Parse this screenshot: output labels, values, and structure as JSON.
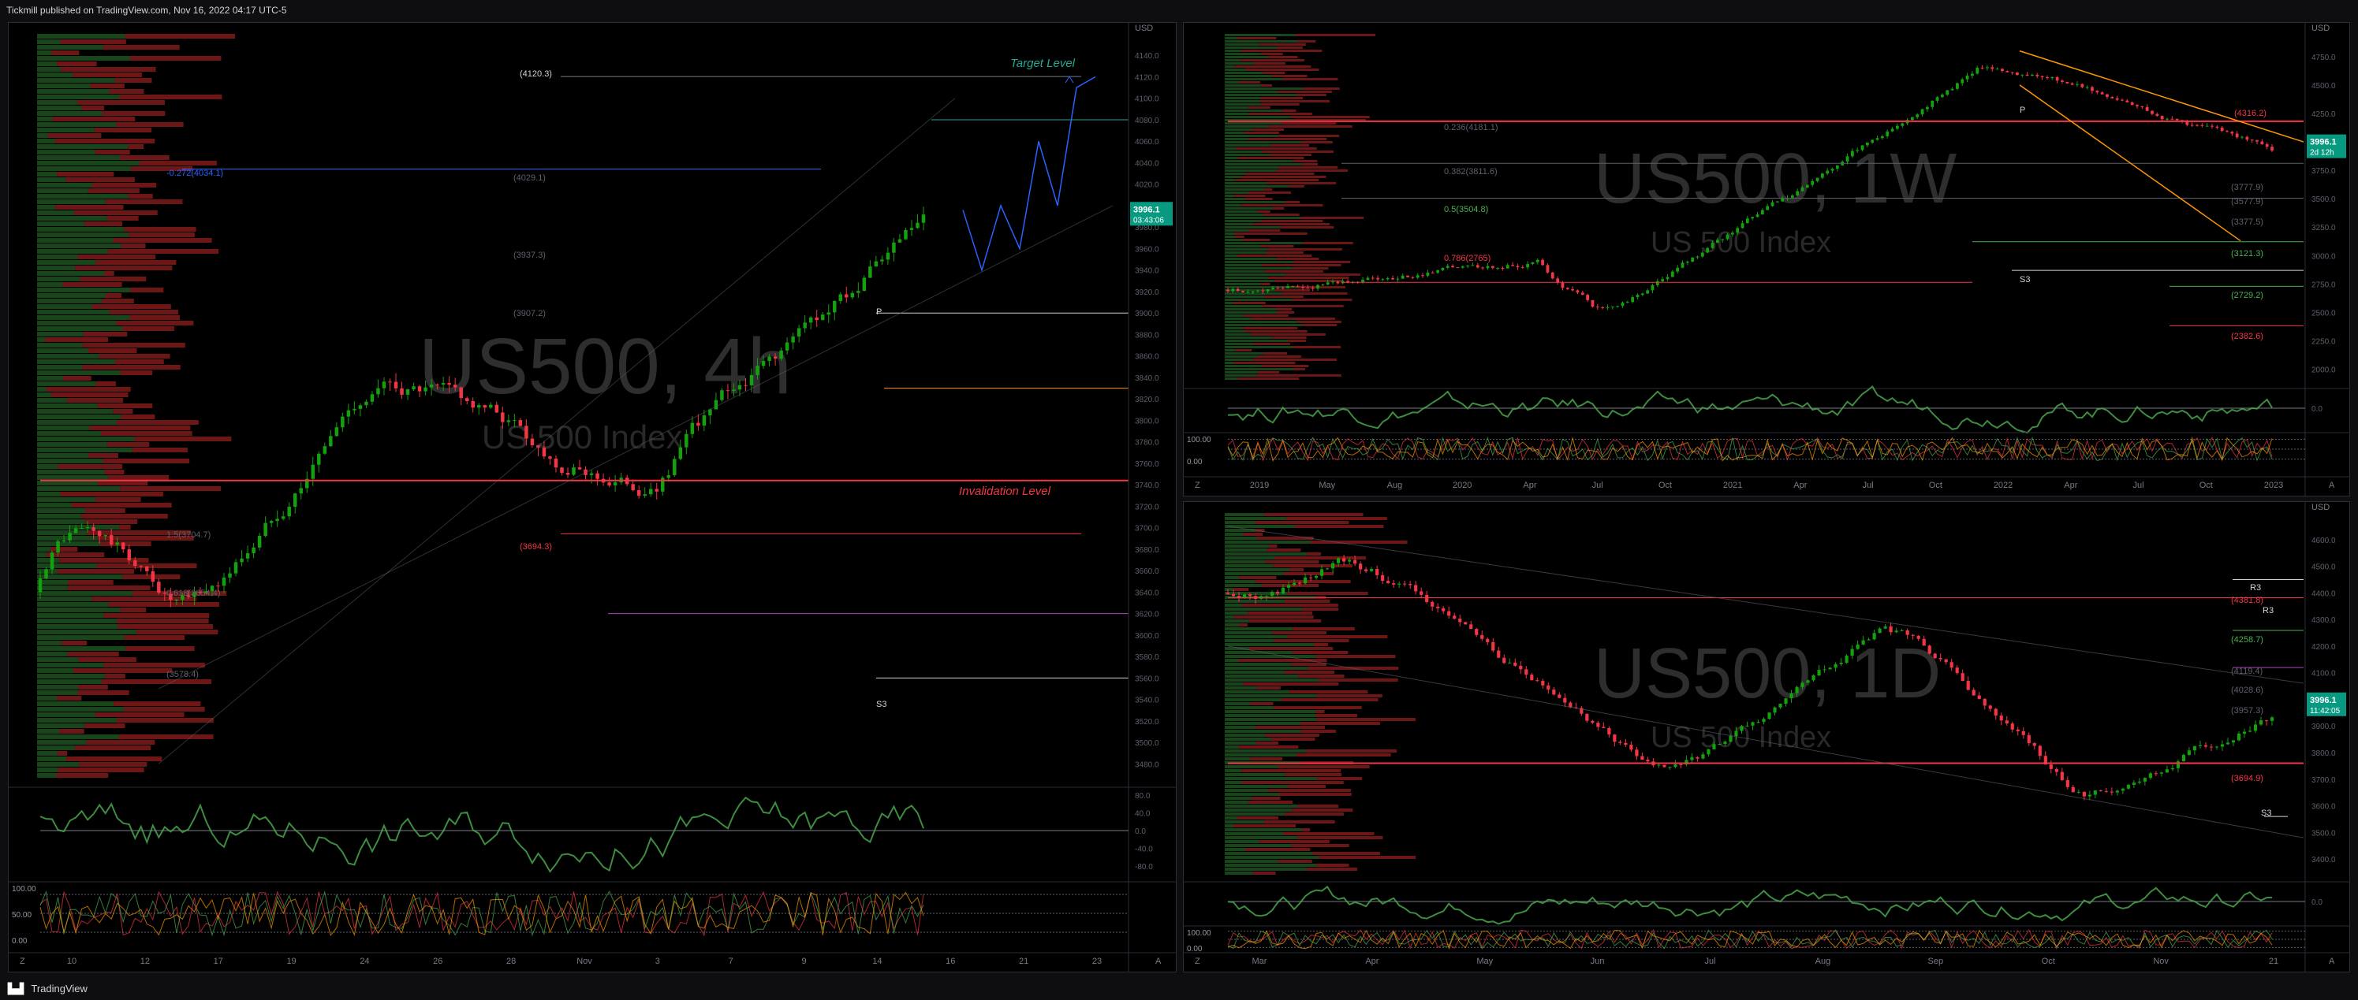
{
  "header": {
    "publisher_text": "Tickmill published on TradingView.com, Nov 16, 2022 04:17 UTC-5"
  },
  "footer": {
    "brand": "TradingView",
    "logo_icon": "tradingview-logo-icon"
  },
  "colors": {
    "bull": "#089981",
    "bear": "#f23645",
    "bull_bright": "#13a10e",
    "accent_orange": "#ff9800",
    "projection": "#2962ff",
    "target_green": "#22ab94",
    "invalidation": "#f23645"
  },
  "chart_data": [
    {
      "type": "candlestick",
      "id": "4h",
      "watermark_symbol": "US500, 4h",
      "watermark_name": "US 500 Index",
      "currency": "USD",
      "price_tag": "3996.1",
      "countdown": "03:43:06",
      "ylim": [
        3470,
        4160
      ],
      "yticks": [
        "4140.0",
        "4120.0",
        "4100.0",
        "4080.0",
        "4060.0",
        "4040.0",
        "4020.0",
        "4000.0",
        "3980.0",
        "3960.0",
        "3940.0",
        "3920.0",
        "3900.0",
        "3880.0",
        "3860.0",
        "3840.0",
        "3820.0",
        "3800.0",
        "3780.0",
        "3760.0",
        "3740.0",
        "3720.0",
        "3700.0",
        "3680.0",
        "3660.0",
        "3640.0",
        "3620.0",
        "3600.0",
        "3580.0",
        "3560.0",
        "3540.0",
        "3520.0",
        "3500.0",
        "3480.0"
      ],
      "xticks": [
        "10",
        "12",
        "17",
        "19",
        "24",
        "26",
        "28",
        "Nov",
        "3",
        "7",
        "9",
        "14",
        "16",
        "21",
        "23"
      ],
      "annotations": [
        "Target Level",
        "Invalidation Level",
        "(4120.3)",
        "-0.272(4034.1)",
        "(4029.1)",
        "(3937.3)",
        "(3907.2)",
        "(3694.3)",
        "1.5(3704.7)",
        "0.618(3654.4)",
        "(3578.4)",
        "S3",
        "P"
      ],
      "levels": {
        "target": 4120.3,
        "invalidation": 3744,
        "fib_0_272": 4034.1,
        "support": 3694.3
      },
      "ohlc_seed": {
        "start": 3640,
        "bars": 150
      },
      "oscillator_labels": [
        "80.0",
        "40.0",
        "0.0",
        "-40.0",
        "-80.0"
      ],
      "stoch_labels": [
        "100.00",
        "50.00",
        "0.00"
      ],
      "projection_path": [
        3996,
        3940,
        4000,
        3960,
        4060,
        4000,
        4110,
        4120
      ]
    },
    {
      "type": "candlestick",
      "id": "1w",
      "watermark_symbol": "US500, 1W",
      "watermark_name": "US 500 Index",
      "currency": "USD",
      "price_tag": "3996.1",
      "countdown": "2d 12h",
      "ylim": [
        1900,
        4950
      ],
      "yticks": [
        "4750.0",
        "4500.0",
        "4250.0",
        "4000.0",
        "3750.0",
        "3500.0",
        "3250.0",
        "3000.0",
        "2750.0",
        "2500.0",
        "2250.0",
        "2000.0"
      ],
      "xticks": [
        "2019",
        "May",
        "Aug",
        "2020",
        "Apr",
        "Jul",
        "Oct",
        "2021",
        "Apr",
        "Jul",
        "Oct",
        "2022",
        "Apr",
        "Jul",
        "Oct",
        "2023"
      ],
      "annotations": [
        "0.236(4181.1)",
        "0.382(3811.6)",
        "0.5(3504.8)",
        "0.786(2765)",
        "(4316.2)",
        "(3777.9)",
        "(3577.9)",
        "(3377.5)",
        "(3121.3)",
        "(2729.2)",
        "(2382.6)",
        "S3",
        "P"
      ],
      "oscillator_labels": [
        "0.0"
      ],
      "stoch_labels": [
        "100.00",
        "0.00"
      ]
    },
    {
      "type": "candlestick",
      "id": "1d",
      "watermark_symbol": "US500, 1D",
      "watermark_name": "US 500 Index",
      "currency": "USD",
      "price_tag": "3996.1",
      "countdown": "11:42:05",
      "ylim": [
        3350,
        4700
      ],
      "yticks": [
        "4600.0",
        "4500.0",
        "4400.0",
        "4300.0",
        "4200.0",
        "4100.0",
        "4000.0",
        "3900.0",
        "3800.0",
        "3700.0",
        "3600.0",
        "3500.0",
        "3400.0"
      ],
      "xticks": [
        "Mar",
        "Apr",
        "May",
        "Jun",
        "Jul",
        "Aug",
        "Sep",
        "Oct",
        "Nov",
        "21"
      ],
      "annotations": [
        "R3",
        "R3",
        "(4381.8)",
        "(4258.7)",
        "(4119.4)",
        "(4028.6)",
        "(3957.3)",
        "(3694.9)",
        "S3"
      ],
      "oscillator_labels": [
        "0.0"
      ],
      "stoch_labels": [
        "100.00",
        "0.00"
      ]
    }
  ]
}
